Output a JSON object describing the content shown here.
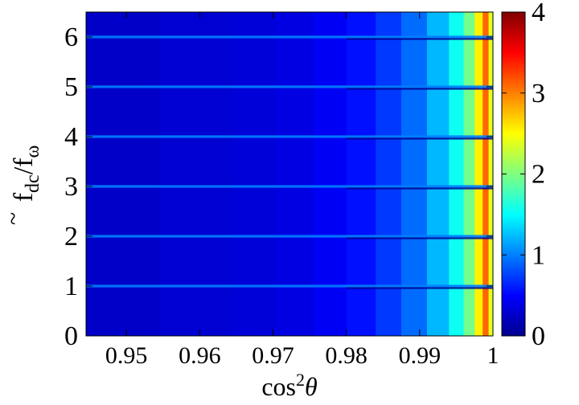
{
  "chart_data": {
    "type": "heatmap",
    "title": "",
    "xlabel": "cos²θ",
    "ylabel": "f̃dc/fω",
    "xlim": [
      0.9445,
      1.0
    ],
    "ylim": [
      0,
      6.5
    ],
    "x_ticks": [
      "0.95",
      "0.96",
      "0.97",
      "0.98",
      "0.99",
      "1"
    ],
    "x_tick_values": [
      0.95,
      0.96,
      0.97,
      0.98,
      0.99,
      1.0
    ],
    "y_ticks": [
      "0",
      "1",
      "2",
      "3",
      "4",
      "5",
      "6"
    ],
    "y_tick_values": [
      0,
      1,
      2,
      3,
      4,
      5,
      6
    ],
    "colorbar": {
      "range": [
        0,
        4
      ],
      "ticks": [
        "0",
        "1",
        "2",
        "3",
        "4"
      ],
      "tick_values": [
        0,
        1,
        2,
        3,
        4
      ],
      "colormap": "jet"
    },
    "columns": [
      {
        "x0": 0.9445,
        "x1": 0.9545,
        "value": 0.26
      },
      {
        "x0": 0.9545,
        "x1": 0.9645,
        "value": 0.3
      },
      {
        "x0": 0.9645,
        "x1": 0.9705,
        "value": 0.33
      },
      {
        "x0": 0.9705,
        "x1": 0.9755,
        "value": 0.37
      },
      {
        "x0": 0.9755,
        "x1": 0.98,
        "value": 0.45
      },
      {
        "x0": 0.98,
        "x1": 0.984,
        "value": 0.56
      },
      {
        "x0": 0.984,
        "x1": 0.9875,
        "value": 0.72
      },
      {
        "x0": 0.9875,
        "x1": 0.991,
        "value": 0.92
      },
      {
        "x0": 0.991,
        "x1": 0.994,
        "value": 1.22
      },
      {
        "x0": 0.994,
        "x1": 0.996,
        "value": 1.55
      },
      {
        "x0": 0.996,
        "x1": 0.9975,
        "value": 1.95
      },
      {
        "x0": 0.9975,
        "x1": 0.9986,
        "value": 2.55
      },
      {
        "x0": 0.9986,
        "x1": 0.9994,
        "value": 3.1
      },
      {
        "x0": 0.9994,
        "x1": 1.0,
        "value": 2.4
      }
    ],
    "resonance_lines": {
      "y_values": [
        1,
        2,
        3,
        4,
        5,
        6
      ],
      "line_value": 1.0,
      "dark_below_from_x": 0.98
    }
  }
}
